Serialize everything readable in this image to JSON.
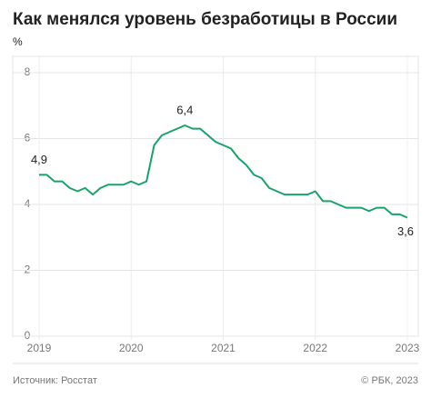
{
  "chart_data": {
    "type": "line",
    "title": "Как менялся уровень безработицы в России",
    "y_label": "%",
    "source": "Источник: Росстат",
    "copyright": "© РБК, 2023",
    "categories": [
      "2019",
      null,
      null,
      null,
      null,
      null,
      null,
      null,
      null,
      null,
      null,
      null,
      "2020",
      null,
      null,
      null,
      null,
      null,
      null,
      null,
      null,
      null,
      null,
      null,
      "2021",
      null,
      null,
      null,
      null,
      null,
      null,
      null,
      null,
      null,
      null,
      null,
      "2022",
      null,
      null,
      null,
      null,
      null,
      null,
      null,
      null,
      null,
      null,
      null,
      "2023"
    ],
    "series": [
      {
        "name": "Уровень безработицы",
        "color": "#17a36b",
        "values": [
          4.9,
          4.9,
          4.7,
          4.7,
          4.5,
          4.4,
          4.5,
          4.3,
          4.5,
          4.6,
          4.6,
          4.6,
          4.7,
          4.6,
          4.7,
          5.8,
          6.1,
          6.2,
          6.3,
          6.4,
          6.3,
          6.3,
          6.1,
          5.9,
          5.8,
          5.7,
          5.4,
          5.2,
          4.9,
          4.8,
          4.5,
          4.4,
          4.3,
          4.3,
          4.3,
          4.3,
          4.4,
          4.1,
          4.1,
          4.0,
          3.9,
          3.9,
          3.9,
          3.8,
          3.9,
          3.9,
          3.7,
          3.7,
          3.6
        ],
        "value_labels": [
          "4,9",
          null,
          null,
          null,
          null,
          null,
          null,
          null,
          null,
          null,
          null,
          null,
          null,
          null,
          null,
          null,
          null,
          null,
          null,
          "6,4",
          null,
          null,
          null,
          null,
          null,
          null,
          null,
          null,
          null,
          null,
          null,
          null,
          null,
          null,
          null,
          null,
          null,
          null,
          null,
          null,
          null,
          null,
          null,
          null,
          null,
          null,
          null,
          null,
          "3,6"
        ]
      }
    ],
    "ylim": [
      0,
      8
    ],
    "yticks": [
      0,
      2,
      4,
      6,
      8
    ],
    "grid": true
  }
}
